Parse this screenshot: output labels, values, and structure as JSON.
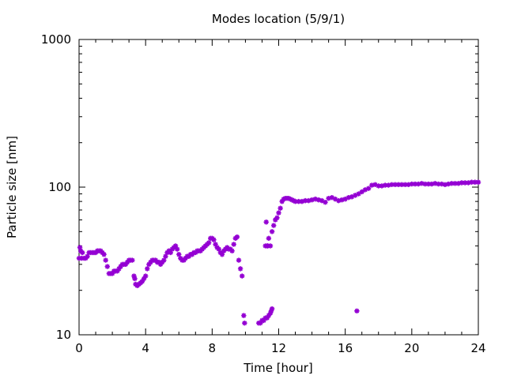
{
  "chart_data": {
    "type": "scatter",
    "title": "Modes location (5/9/1)",
    "xlabel": "Time [hour]",
    "ylabel": "Particle size [nm]",
    "xlim": [
      0,
      24
    ],
    "ylim": [
      10,
      1000
    ],
    "yscale": "log",
    "grid": false,
    "marker_color": "#9400d3",
    "marker": "asterisk",
    "xticks": [
      0,
      4,
      8,
      12,
      16,
      20,
      24
    ],
    "xtick_labels": [
      "0",
      "4",
      "8",
      "12",
      "16",
      "20",
      "24"
    ],
    "yticks": [
      10,
      100,
      1000
    ],
    "ytick_labels": [
      "10",
      "100",
      "1000"
    ],
    "series": [
      {
        "points": [
          [
            0.0,
            33
          ],
          [
            0.05,
            39
          ],
          [
            0.1,
            37
          ],
          [
            0.15,
            33
          ],
          [
            0.2,
            36
          ],
          [
            0.3,
            33
          ],
          [
            0.4,
            33
          ],
          [
            0.5,
            34
          ],
          [
            0.6,
            36
          ],
          [
            0.7,
            36
          ],
          [
            0.8,
            36
          ],
          [
            0.9,
            36
          ],
          [
            1.0,
            36
          ],
          [
            1.1,
            37
          ],
          [
            1.2,
            37
          ],
          [
            1.3,
            37
          ],
          [
            1.4,
            36
          ],
          [
            1.5,
            35
          ],
          [
            1.6,
            32
          ],
          [
            1.7,
            29
          ],
          [
            1.8,
            26
          ],
          [
            1.9,
            26
          ],
          [
            2.0,
            26
          ],
          [
            2.1,
            27
          ],
          [
            2.2,
            27
          ],
          [
            2.3,
            27
          ],
          [
            2.4,
            28
          ],
          [
            2.5,
            29
          ],
          [
            2.6,
            30
          ],
          [
            2.7,
            30
          ],
          [
            2.8,
            30
          ],
          [
            2.9,
            31
          ],
          [
            3.0,
            32
          ],
          [
            3.1,
            32
          ],
          [
            3.2,
            32
          ],
          [
            3.3,
            25
          ],
          [
            3.35,
            24
          ],
          [
            3.4,
            22
          ],
          [
            3.5,
            21.5
          ],
          [
            3.6,
            22
          ],
          [
            3.7,
            22.5
          ],
          [
            3.8,
            23
          ],
          [
            3.9,
            24
          ],
          [
            4.0,
            25
          ],
          [
            4.1,
            28
          ],
          [
            4.2,
            30
          ],
          [
            4.3,
            31
          ],
          [
            4.4,
            32
          ],
          [
            4.5,
            32
          ],
          [
            4.6,
            32
          ],
          [
            4.7,
            31
          ],
          [
            4.8,
            31
          ],
          [
            4.9,
            30
          ],
          [
            5.0,
            31
          ],
          [
            5.1,
            32
          ],
          [
            5.2,
            34
          ],
          [
            5.3,
            36
          ],
          [
            5.4,
            37
          ],
          [
            5.5,
            36
          ],
          [
            5.6,
            38
          ],
          [
            5.7,
            39
          ],
          [
            5.8,
            40
          ],
          [
            5.9,
            38
          ],
          [
            6.0,
            35
          ],
          [
            6.1,
            33
          ],
          [
            6.2,
            32
          ],
          [
            6.3,
            32
          ],
          [
            6.4,
            33
          ],
          [
            6.5,
            34
          ],
          [
            6.6,
            34
          ],
          [
            6.7,
            35
          ],
          [
            6.8,
            35
          ],
          [
            6.9,
            36
          ],
          [
            7.0,
            36
          ],
          [
            7.1,
            37
          ],
          [
            7.2,
            37
          ],
          [
            7.3,
            37
          ],
          [
            7.4,
            38
          ],
          [
            7.5,
            39
          ],
          [
            7.6,
            40
          ],
          [
            7.7,
            41
          ],
          [
            7.8,
            42
          ],
          [
            7.9,
            45
          ],
          [
            8.0,
            45
          ],
          [
            8.1,
            44
          ],
          [
            8.2,
            41
          ],
          [
            8.3,
            39
          ],
          [
            8.4,
            38
          ],
          [
            8.5,
            36
          ],
          [
            8.6,
            35
          ],
          [
            8.7,
            37
          ],
          [
            8.8,
            38
          ],
          [
            8.9,
            39
          ],
          [
            9.0,
            38
          ],
          [
            9.1,
            38
          ],
          [
            9.2,
            37
          ],
          [
            9.3,
            41
          ],
          [
            9.4,
            45
          ],
          [
            9.5,
            46
          ],
          [
            9.6,
            32
          ],
          [
            9.7,
            28
          ],
          [
            9.8,
            25
          ],
          [
            9.9,
            13.5
          ],
          [
            9.95,
            12
          ],
          [
            10.8,
            12
          ],
          [
            10.9,
            12
          ],
          [
            11.0,
            12.5
          ],
          [
            11.1,
            12.5
          ],
          [
            11.2,
            13
          ],
          [
            11.3,
            13
          ],
          [
            11.4,
            13.5
          ],
          [
            11.5,
            14
          ],
          [
            11.55,
            14.5
          ],
          [
            11.6,
            15
          ],
          [
            11.2,
            40
          ],
          [
            11.25,
            58
          ],
          [
            11.3,
            40
          ],
          [
            11.35,
            40
          ],
          [
            11.4,
            45
          ],
          [
            11.5,
            40
          ],
          [
            11.6,
            50
          ],
          [
            11.7,
            55
          ],
          [
            11.8,
            60
          ],
          [
            11.9,
            62
          ],
          [
            12.0,
            67
          ],
          [
            12.1,
            72
          ],
          [
            12.2,
            80
          ],
          [
            12.3,
            83
          ],
          [
            12.4,
            84
          ],
          [
            12.5,
            84
          ],
          [
            12.6,
            84
          ],
          [
            12.7,
            83
          ],
          [
            12.8,
            82
          ],
          [
            12.9,
            81
          ],
          [
            13.0,
            80
          ],
          [
            13.2,
            80
          ],
          [
            13.4,
            80
          ],
          [
            13.6,
            81
          ],
          [
            13.8,
            81
          ],
          [
            14.0,
            82
          ],
          [
            14.2,
            83
          ],
          [
            14.4,
            82
          ],
          [
            14.6,
            81
          ],
          [
            14.8,
            79
          ],
          [
            15.0,
            84
          ],
          [
            15.2,
            85
          ],
          [
            15.4,
            83
          ],
          [
            15.6,
            81
          ],
          [
            15.8,
            82
          ],
          [
            16.0,
            83
          ],
          [
            16.2,
            85
          ],
          [
            16.4,
            86
          ],
          [
            16.6,
            88
          ],
          [
            16.8,
            90
          ],
          [
            17.0,
            93
          ],
          [
            17.2,
            96
          ],
          [
            17.4,
            98
          ],
          [
            17.6,
            103
          ],
          [
            17.8,
            104
          ],
          [
            18.0,
            102
          ],
          [
            18.2,
            102
          ],
          [
            18.4,
            103
          ],
          [
            18.6,
            103
          ],
          [
            18.8,
            104
          ],
          [
            19.0,
            104
          ],
          [
            19.2,
            104
          ],
          [
            19.4,
            104
          ],
          [
            19.6,
            104
          ],
          [
            19.8,
            104
          ],
          [
            20.0,
            105
          ],
          [
            20.2,
            105
          ],
          [
            20.4,
            105
          ],
          [
            20.6,
            106
          ],
          [
            20.8,
            105
          ],
          [
            21.0,
            105
          ],
          [
            21.2,
            105
          ],
          [
            21.4,
            106
          ],
          [
            21.6,
            105
          ],
          [
            21.8,
            105
          ],
          [
            22.0,
            104
          ],
          [
            22.2,
            105
          ],
          [
            22.4,
            106
          ],
          [
            22.6,
            106
          ],
          [
            22.8,
            106
          ],
          [
            23.0,
            107
          ],
          [
            23.2,
            107
          ],
          [
            23.4,
            107
          ],
          [
            23.6,
            108
          ],
          [
            23.8,
            108
          ],
          [
            24.0,
            108
          ],
          [
            16.7,
            14.5
          ]
        ]
      }
    ]
  }
}
